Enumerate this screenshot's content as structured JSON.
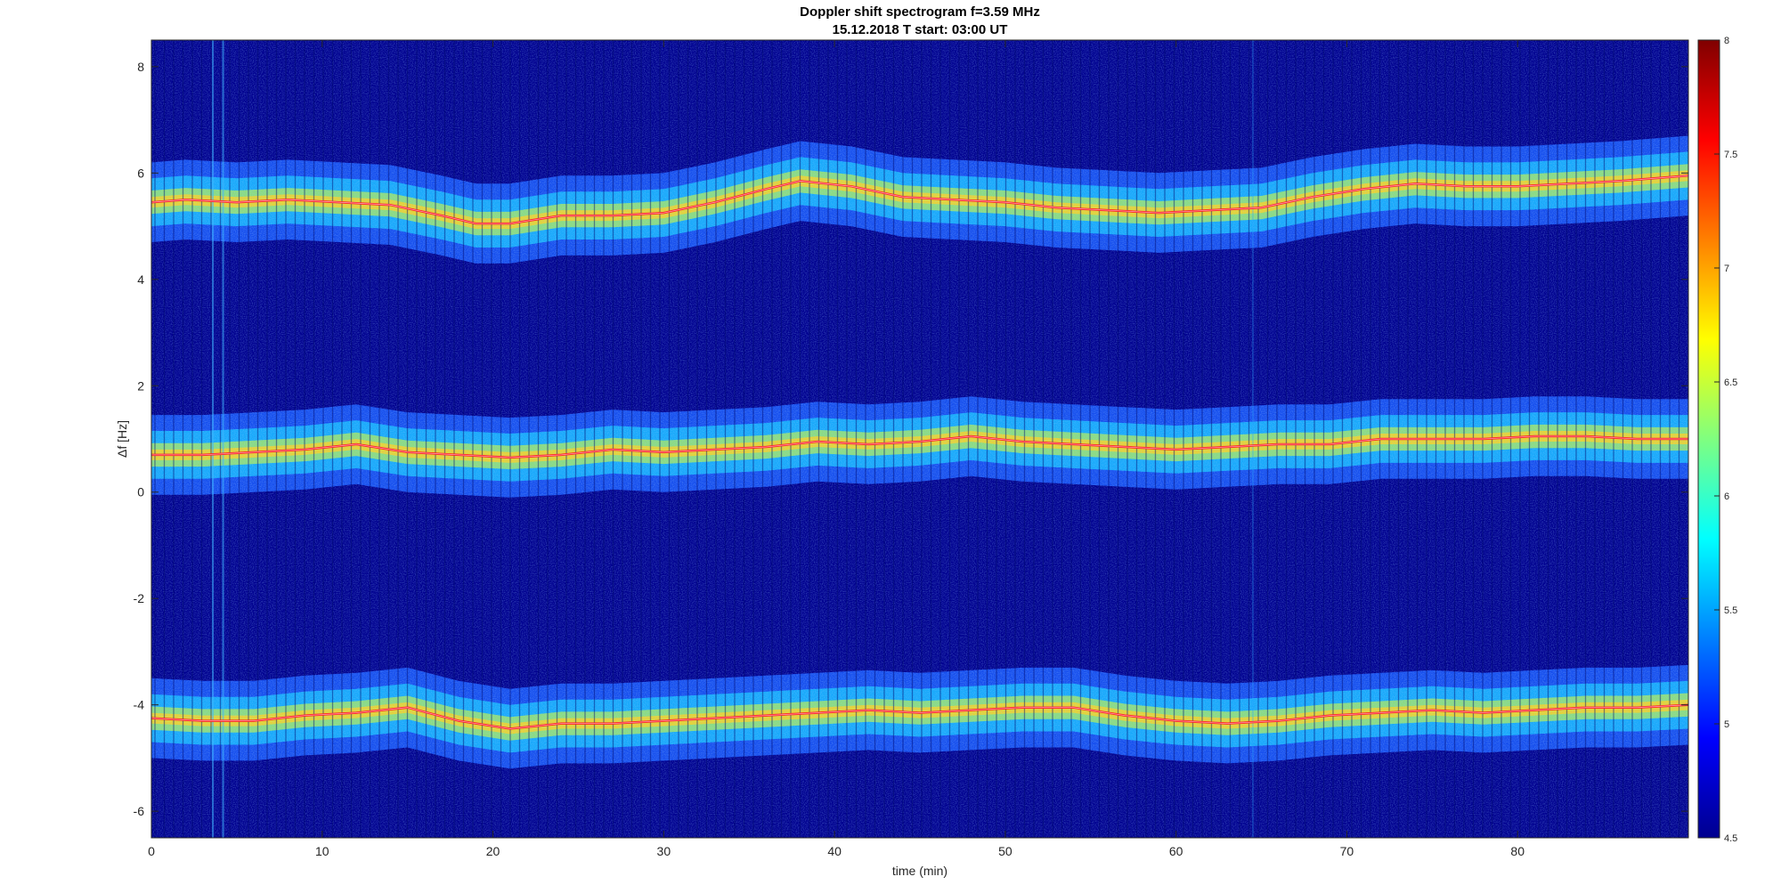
{
  "chart_data": {
    "type": "heatmap",
    "title": "Doppler shift spectrogram f=3.59 MHz",
    "subtitle": "15.12.2018   T start: 03:00 UT",
    "xlabel": "time (min)",
    "ylabel": "Δf [Hz]",
    "xlim": [
      0,
      90
    ],
    "ylim": [
      -6.5,
      8.5
    ],
    "xticks": [
      0,
      10,
      20,
      30,
      40,
      50,
      60,
      70,
      80
    ],
    "yticks": [
      -6,
      -4,
      -2,
      0,
      2,
      4,
      6,
      8
    ],
    "colorbar": {
      "colormap": "jet",
      "clim": [
        4.5,
        8
      ],
      "ticks": [
        4.5,
        5,
        5.5,
        6,
        6.5,
        7,
        7.5,
        8
      ]
    },
    "series": [
      {
        "x": [
          0,
          2,
          5,
          8,
          11,
          14,
          17,
          19,
          21,
          24,
          27,
          30,
          33,
          36,
          38,
          41,
          44,
          47,
          50,
          53,
          56,
          59,
          62,
          65,
          68,
          71,
          74,
          77,
          80,
          83,
          86,
          90
        ],
        "y": [
          5.45,
          5.5,
          5.45,
          5.5,
          5.45,
          5.4,
          5.2,
          5.05,
          5.05,
          5.2,
          5.2,
          5.25,
          5.45,
          5.7,
          5.85,
          5.75,
          5.55,
          5.5,
          5.45,
          5.35,
          5.3,
          5.25,
          5.3,
          5.35,
          5.55,
          5.7,
          5.8,
          5.75,
          5.75,
          5.8,
          5.85,
          5.95
        ]
      },
      {
        "x": [
          0,
          3,
          6,
          9,
          12,
          15,
          18,
          21,
          24,
          27,
          30,
          33,
          36,
          39,
          42,
          45,
          48,
          51,
          54,
          57,
          60,
          63,
          66,
          69,
          72,
          75,
          78,
          81,
          84,
          87,
          90
        ],
        "y": [
          0.7,
          0.7,
          0.75,
          0.8,
          0.9,
          0.75,
          0.7,
          0.65,
          0.7,
          0.8,
          0.75,
          0.8,
          0.85,
          0.95,
          0.9,
          0.95,
          1.05,
          0.95,
          0.9,
          0.85,
          0.8,
          0.85,
          0.9,
          0.9,
          1.0,
          1.0,
          1.0,
          1.05,
          1.05,
          1.0,
          1.0
        ]
      },
      {
        "x": [
          0,
          3,
          6,
          9,
          12,
          15,
          18,
          21,
          24,
          27,
          30,
          33,
          36,
          39,
          42,
          45,
          48,
          51,
          54,
          57,
          60,
          63,
          66,
          69,
          72,
          75,
          78,
          81,
          84,
          87,
          90
        ],
        "y": [
          -4.25,
          -4.3,
          -4.3,
          -4.2,
          -4.15,
          -4.05,
          -4.3,
          -4.45,
          -4.35,
          -4.35,
          -4.3,
          -4.25,
          -4.2,
          -4.15,
          -4.1,
          -4.15,
          -4.1,
          -4.05,
          -4.05,
          -4.2,
          -4.3,
          -4.35,
          -4.3,
          -4.2,
          -4.15,
          -4.1,
          -4.15,
          -4.1,
          -4.05,
          -4.05,
          -4.0
        ]
      }
    ]
  }
}
